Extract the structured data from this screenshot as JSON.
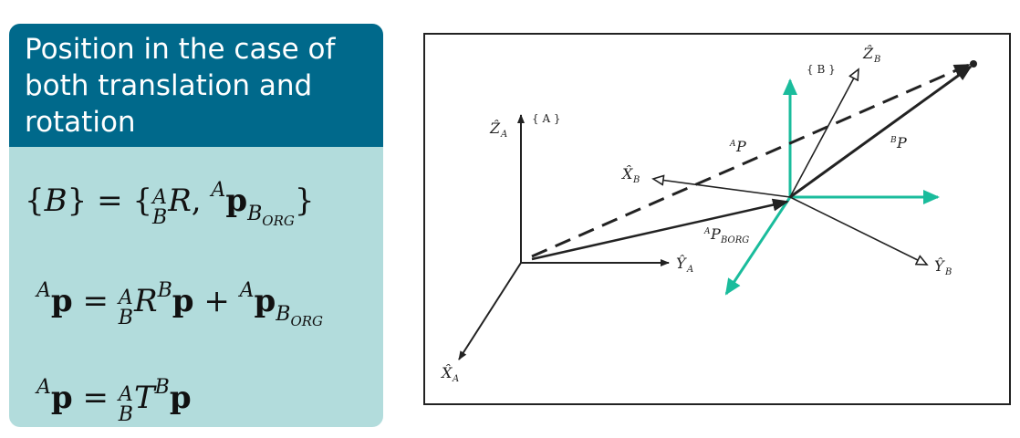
{
  "block": {
    "title_lines": [
      "Position in the case of",
      "both translation and",
      "rotation"
    ]
  },
  "equations": {
    "eq1": "{B} = {^A_B R, ^A p_BORG}",
    "eq2": "^A p = ^A_B R ^B p + ^A p_BORG",
    "eq3": "^A p = ^A_B T ^B p"
  },
  "diagram": {
    "labels": {
      "frame_a": "{ A }",
      "frame_b": "{ B }",
      "z_a": "Ẑ",
      "z_a_sub": "A",
      "x_a": "X̂",
      "x_a_sub": "A",
      "y_a": "Ŷ",
      "y_a_sub": "A",
      "z_b": "Ẑ",
      "z_b_sub": "B",
      "x_b": "X̂",
      "x_b_sub": "B",
      "y_b": "Ŷ",
      "y_b_sub": "B",
      "ap": "P",
      "ap_pre": "A",
      "bp": "P",
      "bp_pre": "B",
      "aporg": "P",
      "aporg_pre": "A",
      "aporg_sub": "BORG"
    },
    "colors": {
      "teal_axes": "#1abc9c",
      "ink": "#222222"
    }
  }
}
